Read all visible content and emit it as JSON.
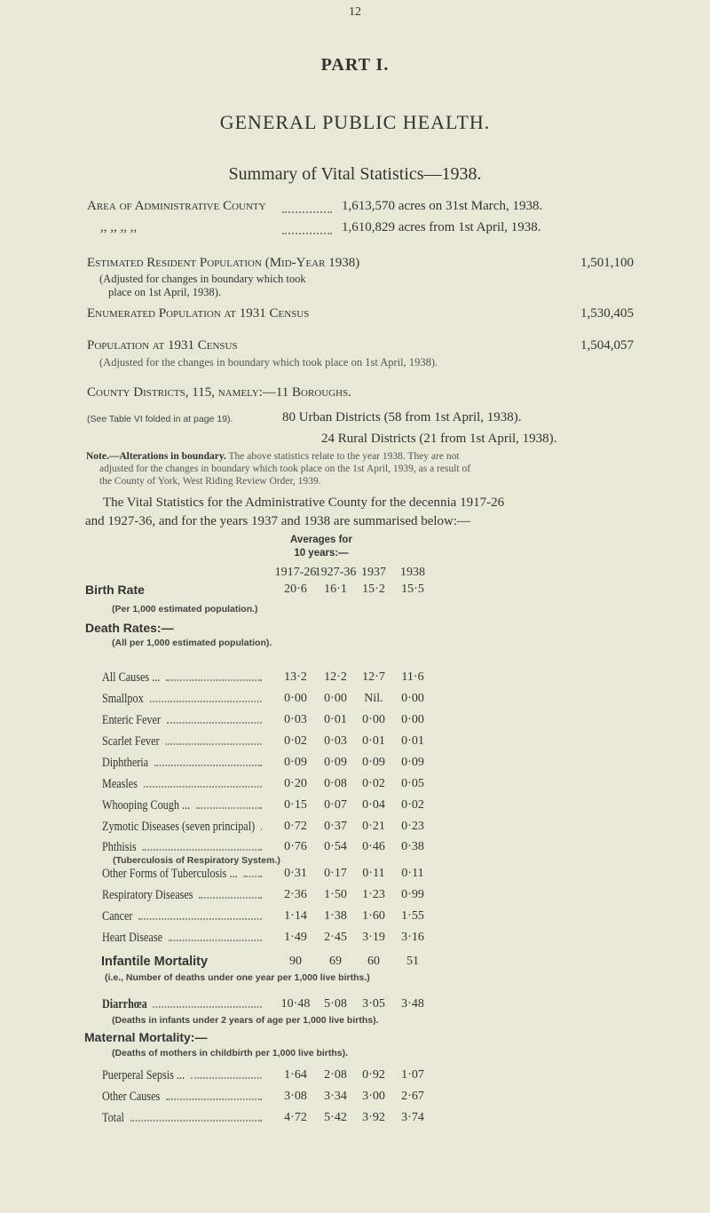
{
  "page_number": "12",
  "part_title": "PART I.",
  "section_title": "GENERAL PUBLIC HEALTH.",
  "summary_title": "Summary of Vital Statistics—1938.",
  "area": {
    "label": "Area of Administrative County",
    "line1": "1,613,570 acres on 31st March, 1938.",
    "ditto": ",,   ,,   ,,   ,,",
    "line2": "1,610,829 acres from 1st April, 1938."
  },
  "estimated": {
    "label": "Estimated Resident Population (Mid-Year 1938)",
    "value": "1,501,100",
    "note1": "(Adjusted for changes in boundary which took",
    "note2": "place on 1st April, 1938)."
  },
  "enumerated": {
    "label": "Enumerated Population at 1931 Census",
    "value": "1,530,405"
  },
  "population1931": {
    "label": "Population at 1931 Census",
    "value": "1,504,057",
    "note": "(Adjusted for the changes in boundary which took place on 1st April, 1938)."
  },
  "districts": {
    "line1": "County Districts, 115, namely:—11 Boroughs.",
    "see": "(See Table VI folded in at page 19).",
    "urban": "80 Urban Districts (58 from 1st April, 1938).",
    "rural": "24 Rural Districts (21 from 1st April, 1938)."
  },
  "note": {
    "head": "Note.—Alterations in boundary.",
    "text1": "The above statistics relate to the year 1938. They are not",
    "text2": "adjusted for the changes in boundary which took place on the 1st April, 1939, as a result of",
    "text3": "the County of York, West Riding Review Order, 1939."
  },
  "intro1": "The Vital Statistics for the Administrative County for the decennia 1917-26",
  "intro2": "and 1927-36, and for the years 1937 and 1938 are summarised below:—",
  "table": {
    "averages1": "Averages for",
    "averages2": "10 years:—",
    "columns": [
      "1917-26",
      "1927-36",
      "1937",
      "1938"
    ],
    "birth_rate": {
      "label": "Birth Rate",
      "values": [
        "20·6",
        "16·1",
        "15·2",
        "15·5"
      ],
      "note": "(Per 1,000 estimated population.)"
    },
    "death_rates": {
      "label": "Death Rates:—",
      "note": "(All per 1,000 estimated population)."
    },
    "rows": [
      {
        "label": "All Causes ...",
        "values": [
          "13·2",
          "12·2",
          "12·7",
          "11·6"
        ]
      },
      {
        "label": "Smallpox",
        "values": [
          "0·00",
          "0·00",
          "Nil.",
          "0·00"
        ]
      },
      {
        "label": "Enteric Fever",
        "values": [
          "0·03",
          "0·01",
          "0·00",
          "0·00"
        ]
      },
      {
        "label": "Scarlet Fever",
        "values": [
          "0·02",
          "0·03",
          "0·01",
          "0·01"
        ]
      },
      {
        "label": "Diphtheria",
        "values": [
          "0·09",
          "0·09",
          "0·09",
          "0·09"
        ]
      },
      {
        "label": "Measles",
        "values": [
          "0·20",
          "0·08",
          "0·02",
          "0·05"
        ]
      },
      {
        "label": "Whooping Cough ...",
        "values": [
          "0·15",
          "0·07",
          "0·04",
          "0·02"
        ]
      },
      {
        "label": "Zymotic Diseases (seven principal)",
        "values": [
          "0·72",
          "0·37",
          "0·21",
          "0·23"
        ]
      },
      {
        "label": "Phthisis",
        "values": [
          "0·76",
          "0·54",
          "0·46",
          "0·38"
        ],
        "note": "(Tuberculosis of Respiratory System.)"
      },
      {
        "label": "Other Forms of Tuberculosis ...",
        "values": [
          "0·31",
          "0·17",
          "0·11",
          "0·11"
        ]
      },
      {
        "label": "Respiratory Diseases",
        "values": [
          "2·36",
          "1·50",
          "1·23",
          "0·99"
        ]
      },
      {
        "label": "Cancer",
        "values": [
          "1·14",
          "1·38",
          "1·60",
          "1·55"
        ]
      },
      {
        "label": "Heart Disease",
        "values": [
          "1·49",
          "2·45",
          "3·19",
          "3·16"
        ]
      }
    ],
    "infantile": {
      "label": "Infantile Mortality",
      "values": [
        "90",
        "69",
        "60",
        "51"
      ],
      "note": "(i.e., Number of deaths under one year per 1,000 live births.)"
    },
    "diarrhoea": {
      "label": "Diarrhœa",
      "values": [
        "10·48",
        "5·08",
        "3·05",
        "3·48"
      ],
      "note": "(Deaths in infants under 2 years of age per 1,000 live births)."
    },
    "maternal": {
      "label": "Maternal Mortality:—",
      "note": "(Deaths of mothers in childbirth per 1,000 live births)."
    },
    "maternal_rows": [
      {
        "label": "Puerperal Sepsis ...",
        "values": [
          "1·64",
          "2·08",
          "0·92",
          "1·07"
        ]
      },
      {
        "label": "Other Causes",
        "values": [
          "3·08",
          "3·34",
          "3·00",
          "2·67"
        ]
      },
      {
        "label": "Total",
        "values": [
          "4·72",
          "5·42",
          "3·92",
          "3·74"
        ]
      }
    ]
  }
}
